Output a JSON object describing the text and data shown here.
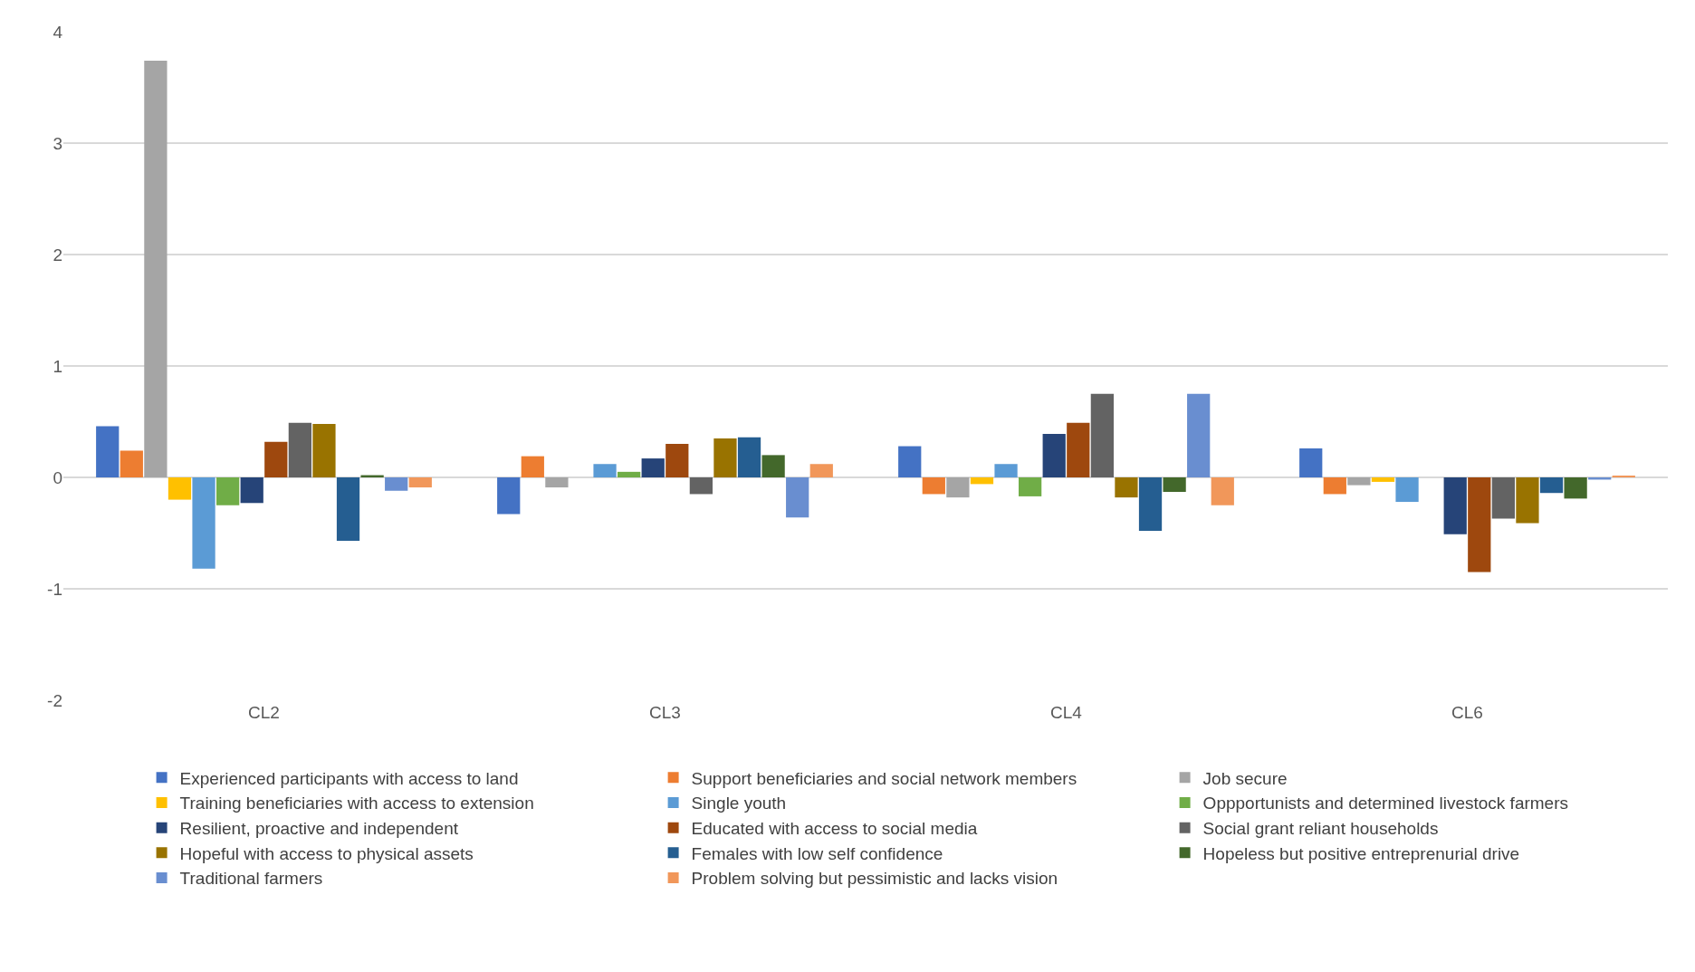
{
  "chart_data": {
    "type": "bar",
    "categories": [
      "CL2",
      "CL3",
      "CL4",
      "CL6"
    ],
    "ylim": [
      -2,
      4
    ],
    "yticks": [
      -2,
      -1,
      0,
      1,
      2,
      3,
      4
    ],
    "grid": "y",
    "legend": "bottom",
    "series": [
      {
        "name": "Experienced participants with access to land",
        "color": "#4472c4",
        "values": [
          0.46,
          -0.33,
          0.28,
          0.26
        ]
      },
      {
        "name": "Support beneficiaries and social network members",
        "color": "#ed7d31",
        "values": [
          0.24,
          0.19,
          -0.15,
          -0.15
        ]
      },
      {
        "name": "Job secure",
        "color": "#a5a5a5",
        "values": [
          3.74,
          -0.09,
          -0.18,
          -0.07
        ]
      },
      {
        "name": "Training beneficiaries with access to extension",
        "color": "#ffc000",
        "values": [
          -0.2,
          null,
          -0.06,
          -0.04
        ]
      },
      {
        "name": "Single youth",
        "color": "#5b9bd5",
        "values": [
          -0.82,
          0.12,
          0.12,
          -0.22
        ]
      },
      {
        "name": "Oppportunists and determined livestock farmers",
        "color": "#70ad47",
        "values": [
          -0.25,
          0.05,
          -0.17,
          null
        ]
      },
      {
        "name": "Resilient, proactive and independent",
        "color": "#264478",
        "values": [
          -0.23,
          0.17,
          0.39,
          -0.51
        ]
      },
      {
        "name": "Educated with access to social media",
        "color": "#9e480e",
        "values": [
          0.32,
          0.3,
          0.49,
          -0.85
        ]
      },
      {
        "name": "Social grant reliant households",
        "color": "#636363",
        "values": [
          0.49,
          -0.15,
          0.75,
          -0.37
        ]
      },
      {
        "name": "Hopeful with access to physical assets",
        "color": "#997300",
        "values": [
          0.48,
          0.35,
          -0.18,
          -0.41
        ]
      },
      {
        "name": "Females with low self confidence",
        "color": "#255e91",
        "values": [
          -0.57,
          0.36,
          -0.48,
          -0.14
        ]
      },
      {
        "name": "Hopeless but positive entreprenurial drive",
        "color": "#43682b",
        "values": [
          0.02,
          0.2,
          -0.13,
          -0.19
        ]
      },
      {
        "name": "Traditional farmers",
        "color": "#698ed0",
        "values": [
          -0.12,
          -0.36,
          0.75,
          -0.02
        ]
      },
      {
        "name": "Problem solving but pessimistic and lacks vision",
        "color": "#f1975a",
        "values": [
          -0.09,
          0.12,
          -0.25,
          0.01
        ]
      }
    ]
  }
}
